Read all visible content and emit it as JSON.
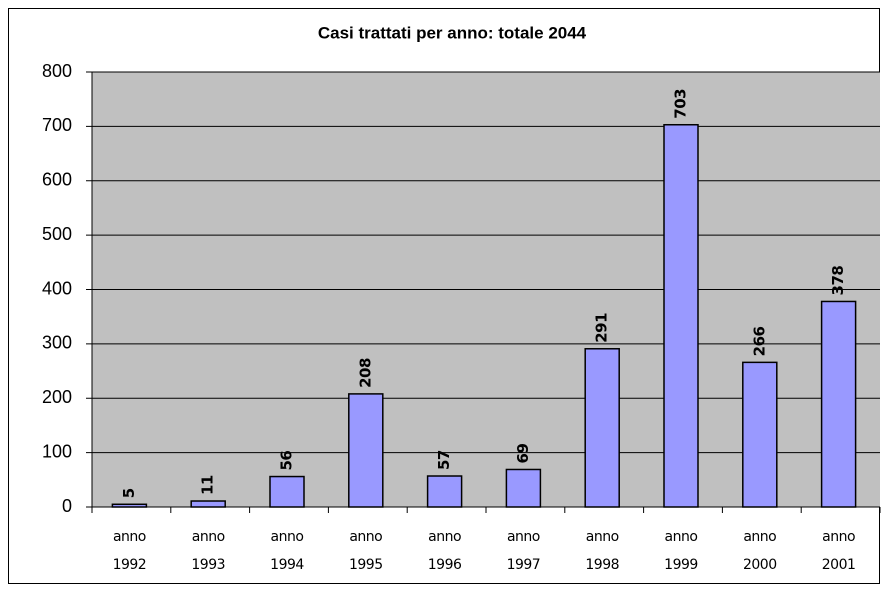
{
  "chart_data": {
    "type": "bar",
    "title": "Casi trattati per anno: totale 2044",
    "categories": [
      [
        "anno",
        "1992"
      ],
      [
        "anno",
        "1993"
      ],
      [
        "anno",
        "1994"
      ],
      [
        "anno",
        "1995"
      ],
      [
        "anno",
        "1996"
      ],
      [
        "anno",
        "1997"
      ],
      [
        "anno",
        "1998"
      ],
      [
        "anno",
        "1999"
      ],
      [
        "anno",
        "2000"
      ],
      [
        "anno",
        "2001"
      ]
    ],
    "values": [
      5,
      11,
      56,
      208,
      57,
      69,
      291,
      703,
      266,
      378
    ],
    "color": "#9999ff",
    "ylim": [
      0,
      800
    ],
    "yticks": [
      0,
      100,
      200,
      300,
      400,
      500,
      600,
      700,
      800
    ],
    "grid": true
  }
}
